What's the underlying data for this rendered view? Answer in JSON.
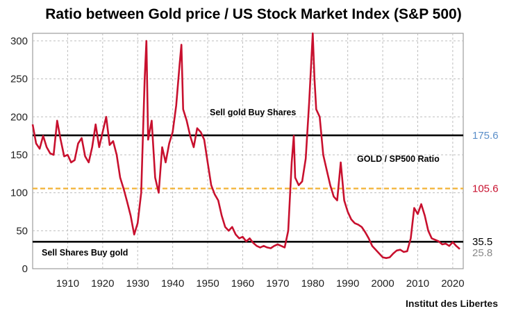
{
  "chart_data": {
    "type": "line",
    "title": "Ratio between Gold price / US Stock Market Index (S&P 500)",
    "xlabel": "",
    "ylabel": "",
    "xlim": [
      1900,
      2023
    ],
    "ylim": [
      0,
      310
    ],
    "x_ticks": [
      1910,
      1920,
      1930,
      1940,
      1950,
      1960,
      1970,
      1980,
      1990,
      2000,
      2010,
      2020
    ],
    "y_ticks": [
      0,
      50,
      100,
      150,
      200,
      250,
      300
    ],
    "grid": true,
    "series": [
      {
        "name": "GOLD / SP500 Ratio",
        "color": "#c8102e",
        "points": [
          [
            1900,
            190
          ],
          [
            1901,
            165
          ],
          [
            1902,
            158
          ],
          [
            1903,
            175
          ],
          [
            1904,
            160
          ],
          [
            1905,
            152
          ],
          [
            1906,
            150
          ],
          [
            1907,
            195
          ],
          [
            1908,
            170
          ],
          [
            1909,
            148
          ],
          [
            1910,
            150
          ],
          [
            1911,
            140
          ],
          [
            1912,
            143
          ],
          [
            1913,
            165
          ],
          [
            1914,
            172
          ],
          [
            1915,
            148
          ],
          [
            1916,
            140
          ],
          [
            1917,
            160
          ],
          [
            1918,
            190
          ],
          [
            1919,
            160
          ],
          [
            1920,
            180
          ],
          [
            1921,
            200
          ],
          [
            1922,
            163
          ],
          [
            1923,
            168
          ],
          [
            1924,
            150
          ],
          [
            1925,
            120
          ],
          [
            1926,
            105
          ],
          [
            1927,
            88
          ],
          [
            1928,
            70
          ],
          [
            1929,
            45
          ],
          [
            1930,
            60
          ],
          [
            1931,
            100
          ],
          [
            1932,
            250
          ],
          [
            1932.5,
            300
          ],
          [
            1933,
            170
          ],
          [
            1934,
            195
          ],
          [
            1935,
            120
          ],
          [
            1936,
            100
          ],
          [
            1937,
            160
          ],
          [
            1938,
            140
          ],
          [
            1939,
            165
          ],
          [
            1940,
            180
          ],
          [
            1941,
            215
          ],
          [
            1942,
            270
          ],
          [
            1942.5,
            295
          ],
          [
            1943,
            210
          ],
          [
            1944,
            195
          ],
          [
            1945,
            175
          ],
          [
            1946,
            160
          ],
          [
            1947,
            185
          ],
          [
            1948,
            180
          ],
          [
            1949,
            170
          ],
          [
            1950,
            140
          ],
          [
            1951,
            110
          ],
          [
            1952,
            98
          ],
          [
            1953,
            90
          ],
          [
            1954,
            70
          ],
          [
            1955,
            55
          ],
          [
            1956,
            50
          ],
          [
            1957,
            55
          ],
          [
            1958,
            45
          ],
          [
            1959,
            40
          ],
          [
            1960,
            42
          ],
          [
            1961,
            36
          ],
          [
            1962,
            40
          ],
          [
            1963,
            34
          ],
          [
            1964,
            30
          ],
          [
            1965,
            28
          ],
          [
            1966,
            30
          ],
          [
            1967,
            28
          ],
          [
            1968,
            27
          ],
          [
            1969,
            30
          ],
          [
            1970,
            32
          ],
          [
            1971,
            30
          ],
          [
            1972,
            28
          ],
          [
            1973,
            50
          ],
          [
            1974,
            140
          ],
          [
            1974.6,
            175
          ],
          [
            1975,
            120
          ],
          [
            1976,
            110
          ],
          [
            1977,
            115
          ],
          [
            1978,
            145
          ],
          [
            1979,
            220
          ],
          [
            1980,
            310
          ],
          [
            1980.5,
            250
          ],
          [
            1981,
            210
          ],
          [
            1982,
            200
          ],
          [
            1983,
            150
          ],
          [
            1984,
            130
          ],
          [
            1985,
            110
          ],
          [
            1986,
            95
          ],
          [
            1987,
            90
          ],
          [
            1988,
            140
          ],
          [
            1989,
            90
          ],
          [
            1990,
            75
          ],
          [
            1991,
            65
          ],
          [
            1992,
            60
          ],
          [
            1993,
            58
          ],
          [
            1994,
            55
          ],
          [
            1995,
            48
          ],
          [
            1996,
            40
          ],
          [
            1997,
            30
          ],
          [
            1998,
            25
          ],
          [
            1999,
            20
          ],
          [
            2000,
            15
          ],
          [
            2001,
            14
          ],
          [
            2002,
            15
          ],
          [
            2003,
            20
          ],
          [
            2004,
            24
          ],
          [
            2005,
            25
          ],
          [
            2006,
            22
          ],
          [
            2007,
            23
          ],
          [
            2008,
            40
          ],
          [
            2009,
            80
          ],
          [
            2010,
            72
          ],
          [
            2011,
            85
          ],
          [
            2012,
            70
          ],
          [
            2013,
            50
          ],
          [
            2014,
            40
          ],
          [
            2015,
            38
          ],
          [
            2016,
            36
          ],
          [
            2017,
            32
          ],
          [
            2018,
            33
          ],
          [
            2019,
            30
          ],
          [
            2020,
            35
          ],
          [
            2021,
            30
          ],
          [
            2022,
            26
          ]
        ]
      }
    ],
    "reference_lines": [
      {
        "value": 175.6,
        "label": "175.6",
        "color": "#000000",
        "label_color": "#5b8fc9",
        "style": "solid"
      },
      {
        "value": 105.6,
        "label": "105.6",
        "color": "#f2b233",
        "label_color": "#c8102e",
        "style": "dashed"
      },
      {
        "value": 35.5,
        "label": "35.5",
        "color": "#000000",
        "label_color": "#000000",
        "style": "solid"
      }
    ],
    "side_labels": [
      {
        "value": 25.8,
        "label": "25.8",
        "color": "#888888"
      }
    ],
    "annotations": [
      {
        "text": "Sell gold Buy Shares"
      },
      {
        "text": "Sell Shares Buy gold"
      },
      {
        "text": "GOLD / SP500 Ratio",
        "color": "#c8102e"
      }
    ],
    "credit": "Institut des Libertes"
  }
}
